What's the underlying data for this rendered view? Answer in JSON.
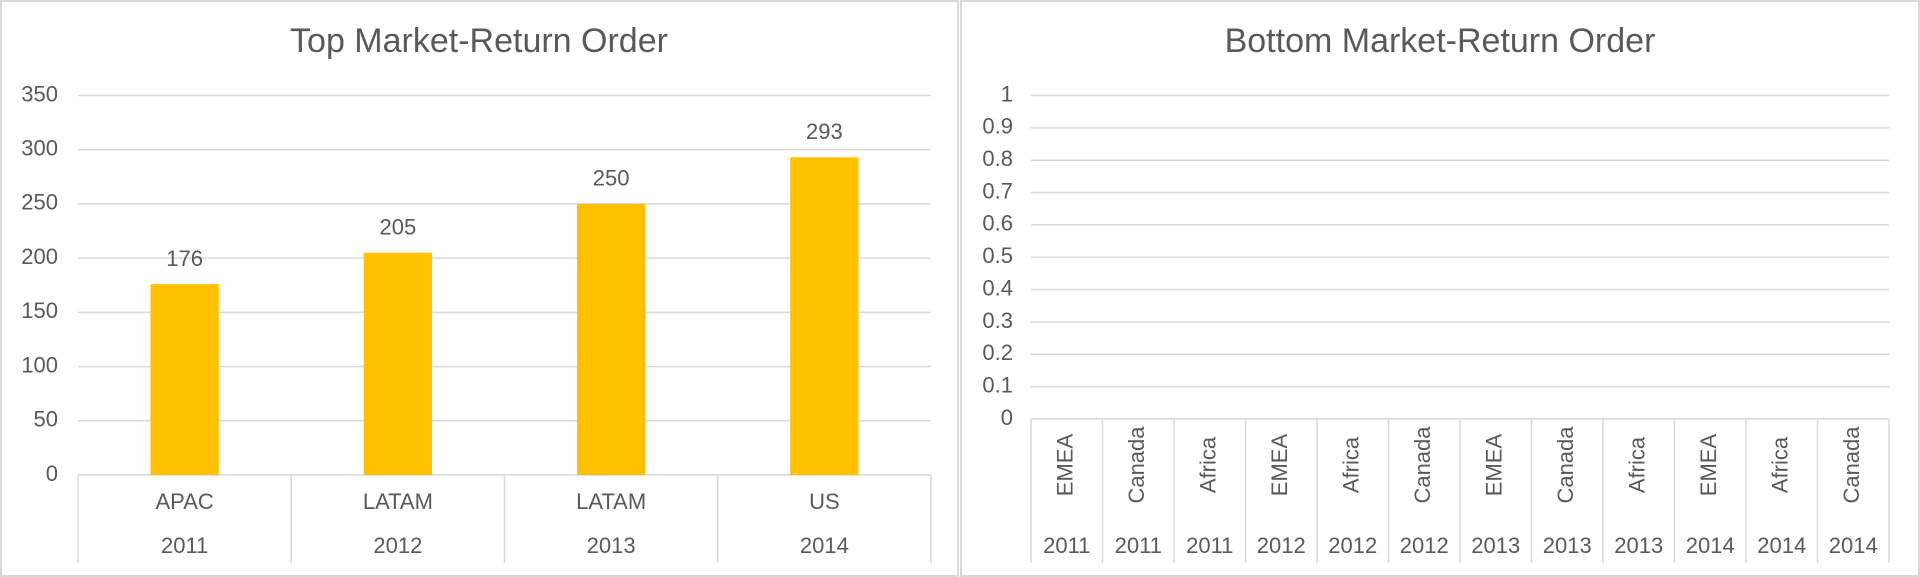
{
  "chart_data": [
    {
      "type": "bar",
      "title": "Top Market-Return Order",
      "categories": [
        "APAC",
        "LATAM",
        "LATAM",
        "US"
      ],
      "years": [
        "2011",
        "2012",
        "2013",
        "2014"
      ],
      "values": [
        176,
        205,
        250,
        293
      ],
      "color": "#FFC000",
      "ylim": [
        0,
        350
      ],
      "yticks": [
        0,
        50,
        100,
        150,
        200,
        250,
        300,
        350
      ],
      "grid": true,
      "data_labels": true
    },
    {
      "type": "bar",
      "title": "Bottom Market-Return Order",
      "categories": [
        "EMEA",
        "Canada",
        "Africa",
        "EMEA",
        "Africa",
        "Canada",
        "EMEA",
        "Canada",
        "Africa",
        "EMEA",
        "Africa",
        "Canada"
      ],
      "years": [
        "2011",
        "2011",
        "2011",
        "2012",
        "2012",
        "2012",
        "2013",
        "2013",
        "2013",
        "2014",
        "2014",
        "2014"
      ],
      "values": [
        null,
        null,
        null,
        null,
        null,
        null,
        null,
        null,
        null,
        null,
        null,
        null
      ],
      "color": "#FFC000",
      "ylim": [
        0,
        1
      ],
      "yticks": [
        0,
        0.1,
        0.2,
        0.3,
        0.4,
        0.5,
        0.6,
        0.7,
        0.8,
        0.9,
        1
      ],
      "grid": true,
      "data_labels": true
    }
  ]
}
